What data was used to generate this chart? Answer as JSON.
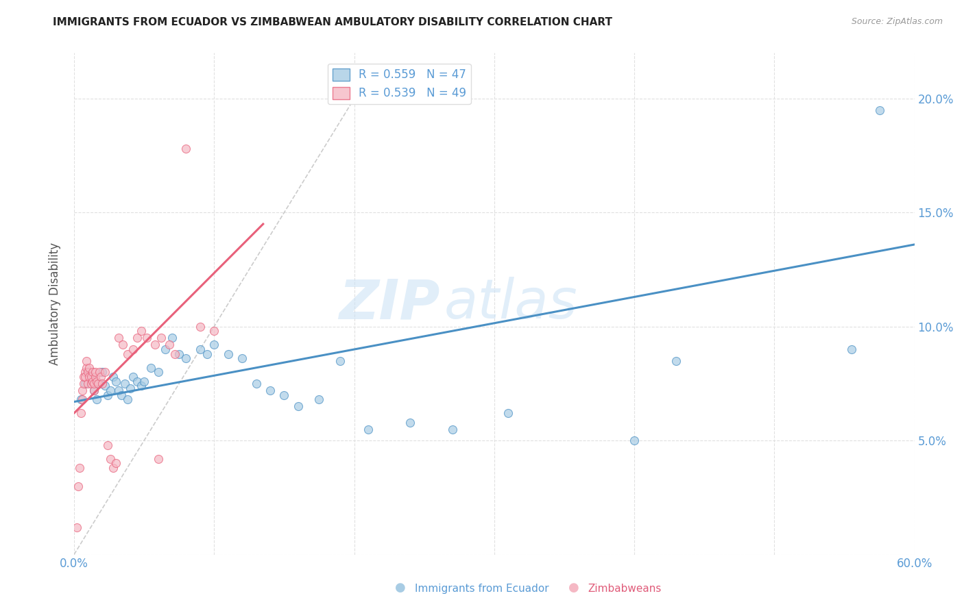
{
  "title": "IMMIGRANTS FROM ECUADOR VS ZIMBABWEAN AMBULATORY DISABILITY CORRELATION CHART",
  "source": "Source: ZipAtlas.com",
  "ylabel": "Ambulatory Disability",
  "xlim": [
    0.0,
    0.6
  ],
  "ylim": [
    0.0,
    0.22
  ],
  "xticks": [
    0.0,
    0.1,
    0.2,
    0.3,
    0.4,
    0.5,
    0.6
  ],
  "xticklabels": [
    "0.0%",
    "",
    "",
    "",
    "",
    "",
    "60.0%"
  ],
  "yticks": [
    0.0,
    0.05,
    0.1,
    0.15,
    0.2
  ],
  "yticklabels": [
    "",
    "5.0%",
    "10.0%",
    "15.0%",
    "20.0%"
  ],
  "blue_color": "#a8cce4",
  "pink_color": "#f5b8c4",
  "blue_line_color": "#4a90c4",
  "pink_line_color": "#e8607a",
  "diagonal_color": "#cccccc",
  "legend_blue_R": "R = 0.559",
  "legend_blue_N": "N = 47",
  "legend_pink_R": "R = 0.539",
  "legend_pink_N": "N = 49",
  "legend_label_blue": "Immigrants from Ecuador",
  "legend_label_pink": "Zimbabweans",
  "watermark_zip": "ZIP",
  "watermark_atlas": "atlas",
  "blue_scatter_x": [
    0.005,
    0.008,
    0.01,
    0.012,
    0.014,
    0.016,
    0.018,
    0.02,
    0.022,
    0.024,
    0.026,
    0.028,
    0.03,
    0.032,
    0.034,
    0.036,
    0.038,
    0.04,
    0.042,
    0.045,
    0.048,
    0.05,
    0.055,
    0.06,
    0.065,
    0.07,
    0.075,
    0.08,
    0.09,
    0.095,
    0.1,
    0.11,
    0.12,
    0.13,
    0.14,
    0.15,
    0.16,
    0.175,
    0.19,
    0.21,
    0.24,
    0.27,
    0.31,
    0.4,
    0.43,
    0.555,
    0.575
  ],
  "blue_scatter_y": [
    0.068,
    0.075,
    0.08,
    0.078,
    0.072,
    0.068,
    0.075,
    0.08,
    0.074,
    0.07,
    0.072,
    0.078,
    0.076,
    0.072,
    0.07,
    0.075,
    0.068,
    0.073,
    0.078,
    0.076,
    0.074,
    0.076,
    0.082,
    0.08,
    0.09,
    0.095,
    0.088,
    0.086,
    0.09,
    0.088,
    0.092,
    0.088,
    0.086,
    0.075,
    0.072,
    0.07,
    0.065,
    0.068,
    0.085,
    0.055,
    0.058,
    0.055,
    0.062,
    0.05,
    0.085,
    0.09,
    0.195
  ],
  "pink_scatter_x": [
    0.002,
    0.003,
    0.004,
    0.005,
    0.006,
    0.006,
    0.007,
    0.007,
    0.008,
    0.008,
    0.009,
    0.009,
    0.01,
    0.01,
    0.011,
    0.011,
    0.012,
    0.012,
    0.013,
    0.013,
    0.014,
    0.014,
    0.015,
    0.015,
    0.016,
    0.017,
    0.018,
    0.019,
    0.02,
    0.022,
    0.024,
    0.026,
    0.028,
    0.03,
    0.032,
    0.035,
    0.038,
    0.042,
    0.045,
    0.048,
    0.052,
    0.058,
    0.062,
    0.068,
    0.072,
    0.08,
    0.09,
    0.1,
    0.06
  ],
  "pink_scatter_y": [
    0.012,
    0.03,
    0.038,
    0.062,
    0.068,
    0.072,
    0.075,
    0.078,
    0.08,
    0.078,
    0.082,
    0.085,
    0.08,
    0.075,
    0.078,
    0.082,
    0.075,
    0.078,
    0.08,
    0.076,
    0.072,
    0.075,
    0.078,
    0.08,
    0.076,
    0.075,
    0.08,
    0.078,
    0.075,
    0.08,
    0.048,
    0.042,
    0.038,
    0.04,
    0.095,
    0.092,
    0.088,
    0.09,
    0.095,
    0.098,
    0.095,
    0.092,
    0.095,
    0.092,
    0.088,
    0.178,
    0.1,
    0.098,
    0.042
  ],
  "blue_line_x": [
    0.0,
    0.6
  ],
  "blue_line_y": [
    0.067,
    0.136
  ],
  "pink_line_x": [
    0.0,
    0.135
  ],
  "pink_line_y": [
    0.062,
    0.145
  ],
  "diag_line_x": [
    0.0,
    0.215
  ],
  "diag_line_y": [
    0.0,
    0.215
  ]
}
